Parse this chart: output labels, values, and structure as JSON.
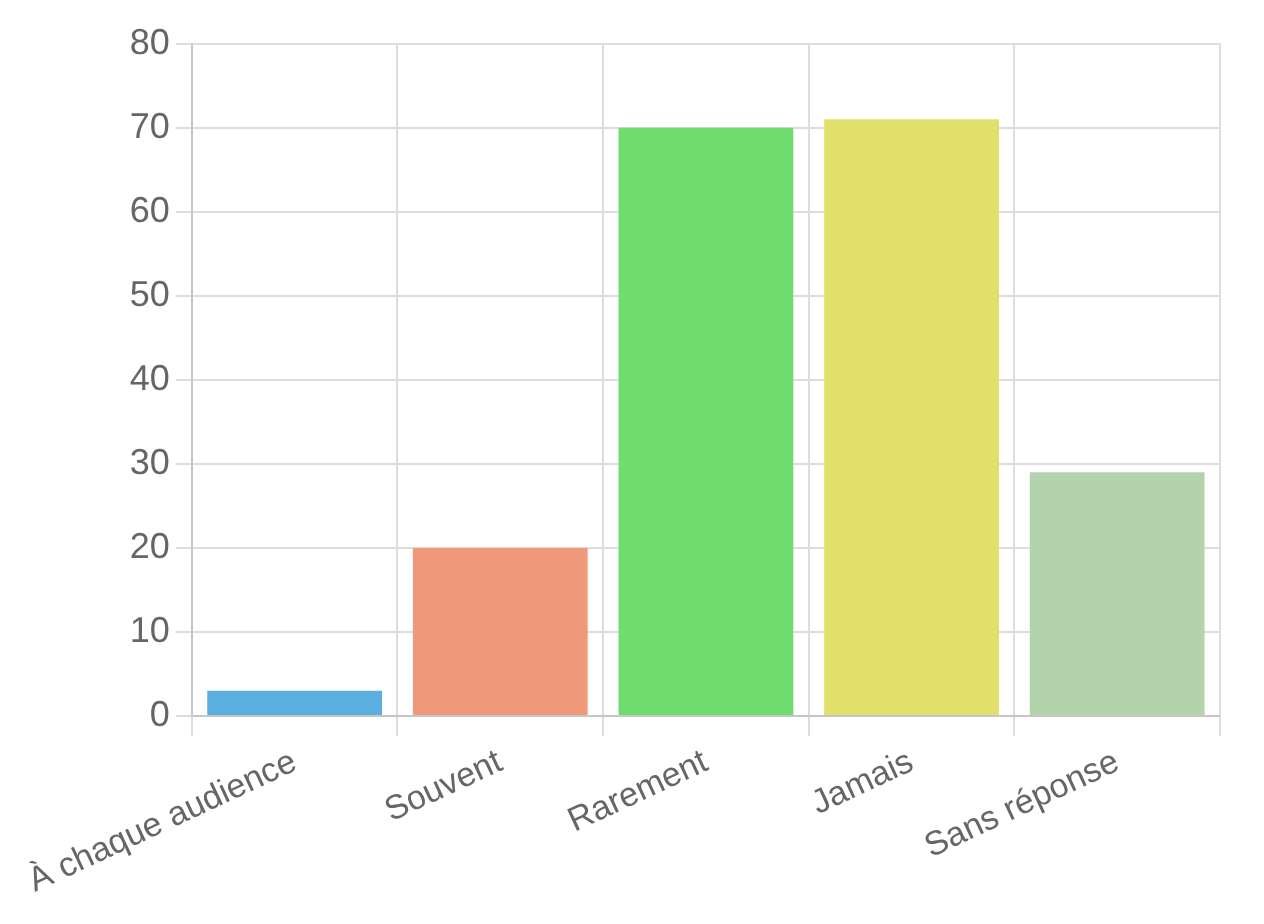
{
  "chart_data": {
    "type": "bar",
    "categories": [
      "À chaque audience",
      "Souvent",
      "Rarement",
      "Jamais",
      "Sans réponse"
    ],
    "values": [
      3,
      20,
      70,
      71,
      29
    ],
    "colors": [
      "#5aaee0",
      "#f0987a",
      "#6fdc6f",
      "#e0e06a",
      "#b3d3ad"
    ],
    "ylim": [
      0,
      80
    ],
    "yticks": [
      0,
      10,
      20,
      30,
      40,
      50,
      60,
      70,
      80
    ],
    "grid": true,
    "legend": false
  }
}
